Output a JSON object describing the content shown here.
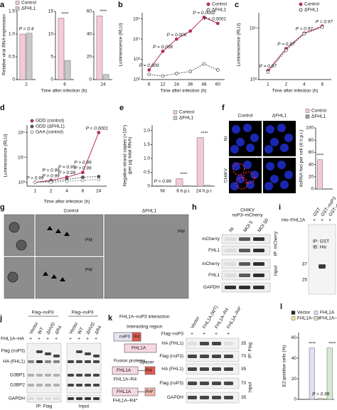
{
  "chart_data": [
    {
      "type": "bar",
      "letter": "a",
      "ylabel": "Relative viral RNA expression",
      "categories": [
        "2"
      ],
      "series": [
        {
          "name": "Control",
          "color": "#f4c9d6",
          "values": [
            1.0
          ]
        },
        {
          "name": "ΔFHL1",
          "color": "#c8c8c8",
          "values": [
            1.02
          ]
        }
      ],
      "ylim": [
        0,
        1.5
      ],
      "yticks": [
        0,
        0.5,
        {
          "value": 1,
          "label": "1.0"
        },
        1.5
      ],
      "annotations": [
        [
          "P = 0.4"
        ]
      ]
    },
    {
      "type": "bar",
      "xlabel": "Time after infection (h)",
      "categories": [
        "6"
      ],
      "series": [
        {
          "color": "#f4c9d6",
          "values": [
            13.5
          ]
        },
        {
          "color": "#c8c8c8",
          "values": [
            4.2
          ]
        }
      ],
      "ylim": [
        0,
        15
      ],
      "yticks": [
        0,
        5,
        10,
        15
      ],
      "annotations": [
        [
          "****"
        ]
      ]
    },
    {
      "type": "bar",
      "categories": [
        "24"
      ],
      "series": [
        {
          "color": "#f4c9d6",
          "values": [
            56
          ]
        },
        {
          "color": "#c8c8c8",
          "values": [
            4.5
          ]
        }
      ],
      "ylim": [
        0,
        60
      ],
      "yticks": [
        0,
        20,
        40,
        60
      ],
      "annotations": [
        [
          "****"
        ]
      ]
    },
    {
      "type": "line",
      "letter": "b",
      "log": true,
      "ylabel": "Luminescence (RLU)",
      "xlabel": "Time after infection (h)",
      "categories": [
        "6",
        "12",
        "24",
        "36",
        "48",
        "60"
      ],
      "series": [
        {
          "name": "Control",
          "color": "#b5305a",
          "values": [
            300,
            2500,
            10000,
            25000,
            120000,
            60000
          ]
        },
        {
          "name": "ΔFHL1",
          "color": "#555555",
          "dash": true,
          "open": true,
          "values": [
            180,
            150,
            200,
            250,
            600,
            300
          ]
        }
      ],
      "ylim": [
        100,
        200000
      ],
      "yticks": [
        {
          "value": 100,
          "label": "10²"
        },
        {
          "value": 1000,
          "label": "10³"
        },
        {
          "value": 10000,
          "label": "10⁴"
        },
        {
          "value": 100000,
          "label": "10⁵"
        }
      ],
      "annotations": [
        [
          "P = 0.009"
        ],
        [
          "P = 0.008"
        ],
        [
          "P = 0.006"
        ],
        null,
        [
          "P = 0.0002"
        ],
        [
          "P < 0.0001"
        ]
      ]
    },
    {
      "type": "line",
      "letter": "c",
      "log": true,
      "ylabel": "Luminescence (RLU)",
      "xlabel": "Time after infection (h)",
      "categories": [
        "1",
        "2",
        "4",
        "8"
      ],
      "series": [
        {
          "name": "Control",
          "color": "#b5305a",
          "values": [
            1500,
            4000,
            8000,
            11000
          ]
        },
        {
          "name": "ΔFHL1",
          "color": "#555555",
          "dash": true,
          "open": true,
          "values": [
            1400,
            3700,
            7800,
            10500
          ]
        }
      ],
      "ylim": [
        1000,
        20000
      ],
      "yticks": [
        {
          "value": 1000,
          "label": "10³"
        },
        {
          "value": 10000,
          "label": "10⁴"
        }
      ],
      "annotations": [
        [
          "P = 0.97"
        ],
        [
          "P = 0.97"
        ],
        [
          "P = 0.97"
        ],
        [
          "P = 0.97"
        ]
      ]
    },
    {
      "type": "line",
      "letter": "d",
      "log": true,
      "ylabel": "Luminescence (RLU)",
      "xlabel": "Time after infection (h)",
      "categories": [
        "1",
        "2",
        "4",
        "8",
        "24"
      ],
      "series": [
        {
          "name": "GDD (control)",
          "color": "#b5305a",
          "values": [
            1000,
            1200,
            1600,
            2500,
            100000
          ]
        },
        {
          "name": "GDD (ΔFHL1)",
          "color": "#555555",
          "dash": true,
          "values": [
            1000,
            1100,
            1300,
            1600,
            1700
          ]
        },
        {
          "name": "GAA (control)",
          "color": "#888888",
          "dash": true,
          "open": true,
          "values": [
            1000,
            1000,
            1100,
            1200,
            1300
          ]
        }
      ],
      "ylim": [
        700,
        200000
      ],
      "yticks": [
        {
          "value": 1000,
          "label": "10³"
        },
        {
          "value": 10000,
          "label": "10⁴"
        },
        {
          "value": 100000,
          "label": "10⁵"
        }
      ],
      "annotations": [
        [
          "P > 0.99"
        ],
        [
          "P = 0.99",
          "P > 0.99"
        ],
        [
          "P = 0.99",
          "P > 0.99"
        ],
        [
          "P > 0.99",
          "P > 0.99"
        ],
        [
          "P < 0.0001"
        ]
      ]
    },
    {
      "type": "bar",
      "letter": "e",
      "ylabel": [
        "Negative-strand copies (×10⁵)",
        "(per μg total RNA)"
      ],
      "categories": [
        "NI",
        "6 h.p.i.",
        "24 h.p.i."
      ],
      "series": [
        {
          "name": "Control",
          "color": "#f4c9d6",
          "values": [
            0.02,
            0.27,
            1.75
          ]
        },
        {
          "name": "ΔFHL1",
          "color": "#c8c8c8",
          "values": [
            0.01,
            0.02,
            0.03
          ]
        }
      ],
      "ylim": [
        0,
        2.2
      ],
      "yticks": [
        0,
        0.5,
        {
          "value": 1,
          "label": "1.0"
        },
        1.5,
        {
          "value": 2,
          "label": "2.0"
        }
      ],
      "annotations": [
        [
          "P > 0.99"
        ],
        [
          "****"
        ],
        [
          "****"
        ]
      ]
    },
    {
      "type": "bar",
      "ylabel": "dsRNA foci per cell (6 h.p.i.)",
      "categories": [
        null,
        null
      ],
      "values": [
        48,
        0.5
      ],
      "colors": [
        "#f4c9d6",
        "#999999"
      ],
      "legend": [
        "Control",
        "ΔFHL1"
      ],
      "ylim": [
        0,
        100
      ],
      "yticks": [
        0,
        20,
        40,
        60,
        80,
        100
      ],
      "annotations": [
        [
          "****"
        ],
        null
      ]
    },
    {
      "type": "bar",
      "letter": "l",
      "ylabel": "E2-positive cells (%)",
      "categories": [
        null,
        null,
        null,
        null
      ],
      "values": [
        0,
        50,
        1,
        50
      ],
      "colors": [
        "#222222",
        "#e3dcf2",
        "#f3e3a0",
        "#d5ebd1"
      ],
      "legend": [
        "Vector",
        "FHL1A",
        "FHL1A–R4",
        "FHL1A–R4*"
      ],
      "ylim": [
        0,
        65
      ],
      "yticks": [
        0,
        20,
        40,
        60
      ],
      "annotations": [
        null,
        [
          "****"
        ],
        [
          "P = 0.99"
        ],
        [
          "****"
        ]
      ]
    }
  ],
  "figures": {
    "f": {
      "letter": "f",
      "columns": [
        "Control",
        "ΔFHL1"
      ],
      "rows": [
        "NI",
        "CHIKV"
      ]
    },
    "g": {
      "letter": "g",
      "columns": [
        "Control",
        "ΔFHL1"
      ],
      "labels": [
        "PM",
        "PM",
        "PM"
      ]
    },
    "h": {
      "letter": "h",
      "header": [
        "CHIKV",
        "nsP3–mCherry"
      ],
      "lanes": [
        "NI",
        "MOI 5",
        "MOI 50"
      ],
      "rows": [
        "mCherry",
        "FHL1",
        "mCherry",
        "FHL1",
        "GAPDH"
      ],
      "groups": [
        "IP: mCherry",
        "Input"
      ]
    },
    "i": {
      "letter": "i",
      "header": "His–FHL1A",
      "plus": "+",
      "lanes": [
        "GST",
        "GST–nsP3",
        "GST–nsP3(HVD)"
      ],
      "markers": [
        "37",
        "25"
      ],
      "notes": [
        "IP: GST",
        "IB: His"
      ]
    },
    "j": {
      "letter": "j",
      "header": "Flag–nsP3",
      "lanes": [
        "Vector",
        "WT",
        "ΔHVD",
        "ΔR4"
      ],
      "probe": "FHL1A–HA",
      "plus": "+",
      "rows": [
        "Flag (nsP3)",
        "HA (FHL1)",
        "G3BP1",
        "G3BP2",
        "GAPDH"
      ],
      "groups": [
        "IP: Flag",
        "Input"
      ]
    },
    "k": {
      "letter": "k",
      "title": "FHL1A–nsP3 interaction",
      "region": "Interacting region",
      "boxes": [
        "nsP3",
        "FHL1A"
      ],
      "fusion": "Fusion proteins",
      "r4": [
        "R4",
        "R4*"
      ],
      "spacer": "Spacer",
      "constructs": [
        "FHL1A–R4",
        "FHL1A–R4*"
      ],
      "probe": "Flag–nsP3",
      "plus": "+",
      "lanes": [
        "Vector",
        "FHL1A (WT)",
        "FHL1A–R4",
        "FHL1A–R4*"
      ],
      "rows": [
        "HA (FHL1)",
        "Flag (nsP3)",
        "HA (FHL1)",
        "Flag (nsP3)",
        "GAPDH"
      ],
      "markers": [
        "35",
        "70",
        "35",
        "70",
        "35"
      ],
      "groups": [
        "IP: Flag",
        "Input"
      ]
    }
  }
}
